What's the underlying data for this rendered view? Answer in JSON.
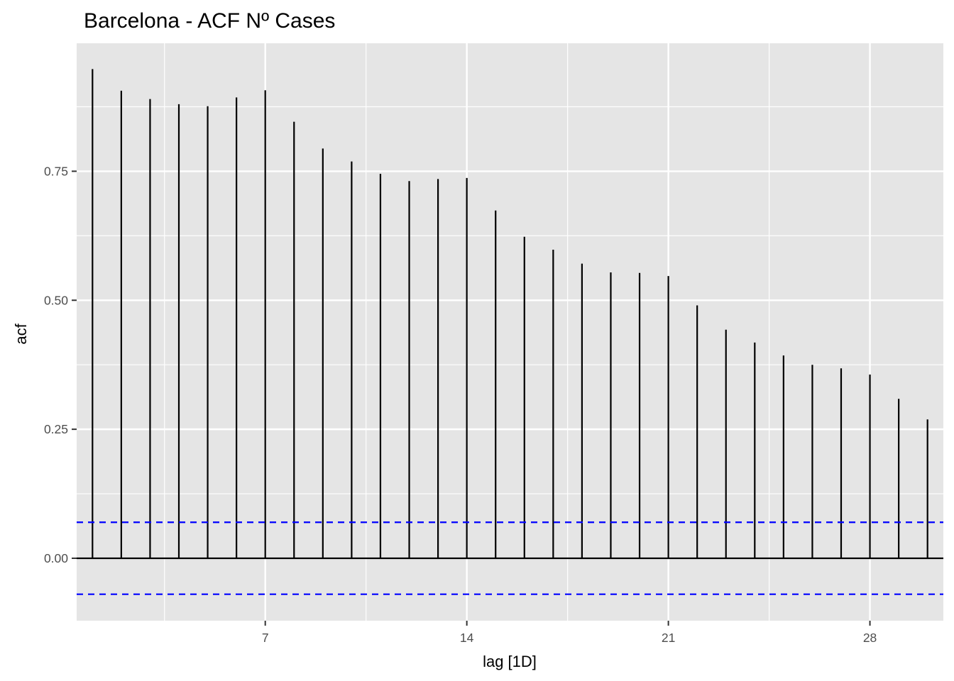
{
  "chart_data": {
    "type": "bar",
    "title": "Barcelona - ACF Nº Cases",
    "xlabel": "lag [1D]",
    "ylabel": "acf",
    "x": [
      1,
      2,
      3,
      4,
      5,
      6,
      7,
      8,
      9,
      10,
      11,
      12,
      13,
      14,
      15,
      16,
      17,
      18,
      19,
      20,
      21,
      22,
      23,
      24,
      25,
      26,
      27,
      28,
      29,
      30
    ],
    "values": [
      0.948,
      0.906,
      0.89,
      0.88,
      0.876,
      0.893,
      0.907,
      0.846,
      0.794,
      0.769,
      0.745,
      0.731,
      0.735,
      0.737,
      0.674,
      0.623,
      0.598,
      0.571,
      0.554,
      0.553,
      0.547,
      0.49,
      0.443,
      0.418,
      0.393,
      0.375,
      0.368,
      0.356,
      0.309,
      0.269
    ],
    "confidence_band": 0.0697,
    "xlim": [
      0.45,
      30.55
    ],
    "ylim": [
      -0.121,
      0.998
    ],
    "x_ticks": [
      7,
      14,
      21,
      28
    ],
    "x_tick_labels": [
      "7",
      "14",
      "21",
      "28"
    ],
    "y_ticks": [
      0,
      0.25,
      0.5,
      0.75
    ],
    "y_tick_labels": [
      "0.00",
      "0.25",
      "0.50",
      "0.75"
    ],
    "grid": true,
    "colors": {
      "panel_background": "#e5e5e5",
      "grid": "#ffffff",
      "bars": "#000000",
      "confidence_band": "#0000ff"
    }
  }
}
